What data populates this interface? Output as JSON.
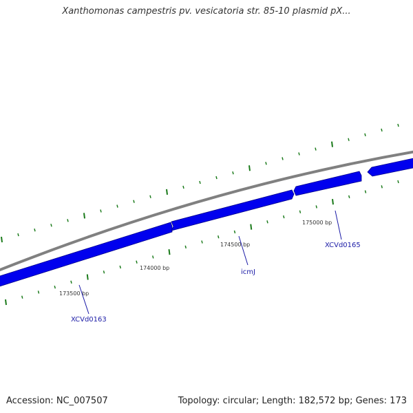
{
  "title": "Xanthomonas campestris pv. vesicatoria str. 85-10 plasmid pX...",
  "footer": {
    "accession": "Accession: NC_007507",
    "summary": "Topology: circular; Length: 182,572 bp; Genes: 173"
  },
  "colors": {
    "backbone": "#808080",
    "gene_fill": "#0000ee",
    "gene_stroke": "#00008a",
    "ticks": "#1a7a1a",
    "gene_label": "#1a1aa6"
  },
  "position_ticks": [
    {
      "label": "173500 bp"
    },
    {
      "label": "174000 bp"
    },
    {
      "label": "174500 bp"
    },
    {
      "label": "175000 bp"
    }
  ],
  "genes": [
    {
      "name": "XCVd0163"
    },
    {
      "name": "icmJ"
    },
    {
      "name": "XCVd0165"
    }
  ]
}
